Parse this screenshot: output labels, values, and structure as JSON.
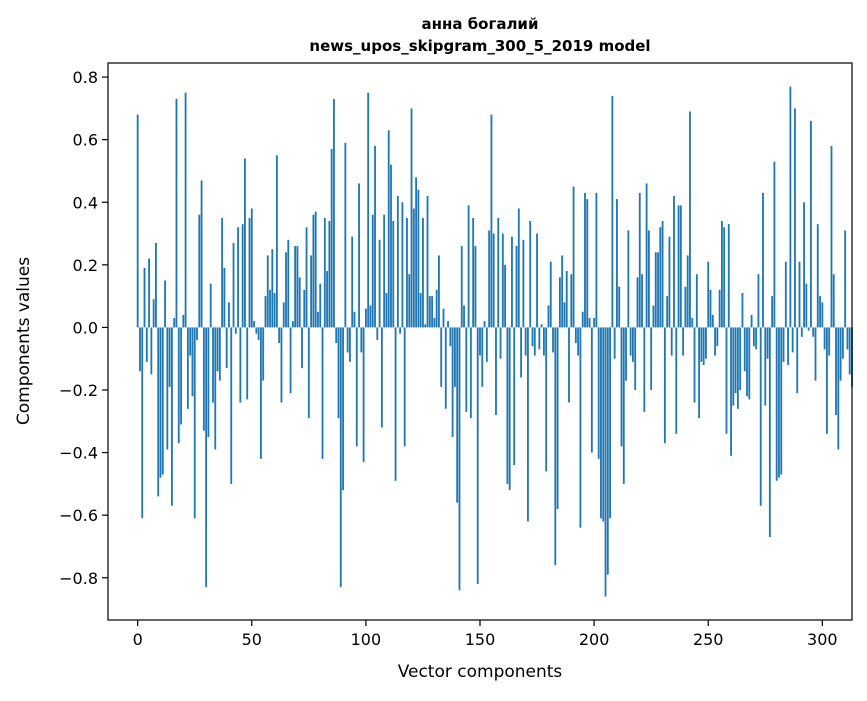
{
  "chart_data": {
    "type": "bar",
    "title": [
      "анна богалий",
      "news_upos_skipgram_300_5_2019 model"
    ],
    "xlabel": "Vector components",
    "ylabel": "Components values",
    "xlim": [
      -13,
      313
    ],
    "ylim": [
      -0.935,
      0.845
    ],
    "xticks": [
      0,
      50,
      100,
      150,
      200,
      250,
      300
    ],
    "yticks": [
      -0.8,
      -0.6,
      -0.4,
      -0.2,
      0.0,
      0.2,
      0.4,
      0.6,
      0.8
    ],
    "ytick_labels": [
      "−0.8",
      "−0.6",
      "−0.4",
      "−0.2",
      "0.0",
      "0.2",
      "0.4",
      "0.6",
      "0.8"
    ],
    "bar_color": "#1f77b4",
    "grid": false,
    "values": [
      0.68,
      -0.14,
      -0.61,
      0.19,
      -0.11,
      0.22,
      -0.15,
      0.09,
      0.27,
      -0.54,
      -0.48,
      -0.47,
      0.15,
      -0.39,
      -0.19,
      -0.57,
      0.03,
      0.73,
      -0.37,
      -0.31,
      0.04,
      0.75,
      -0.26,
      -0.09,
      -0.22,
      -0.61,
      -0.04,
      0.36,
      0.47,
      -0.33,
      -0.83,
      -0.35,
      0.14,
      -0.24,
      -0.39,
      -0.14,
      -0.17,
      0.35,
      0.19,
      -0.13,
      0.08,
      -0.5,
      0.27,
      -0.02,
      0.32,
      -0.24,
      0.33,
      0.54,
      -0.23,
      0.35,
      0.38,
      0.02,
      -0.02,
      -0.04,
      -0.42,
      -0.17,
      0.1,
      0.23,
      0.12,
      0.25,
      0.11,
      0.55,
      -0.05,
      -0.24,
      0.08,
      0.24,
      0.28,
      -0.21,
      0.02,
      0.26,
      0.26,
      0.16,
      -0.13,
      0.12,
      0.32,
      -0.29,
      0.23,
      0.36,
      0.37,
      0.05,
      0.14,
      -0.42,
      0.35,
      0.18,
      0.34,
      0.57,
      0.73,
      -0.05,
      -0.29,
      -0.83,
      -0.52,
      0.59,
      -0.08,
      -0.11,
      0.29,
      0.05,
      -0.38,
      0.46,
      -0.08,
      -0.43,
      0.06,
      0.75,
      0.07,
      0.36,
      0.58,
      -0.04,
      0.28,
      -0.32,
      0.36,
      0.11,
      0.63,
      0.52,
      0.34,
      -0.49,
      0.42,
      -0.02,
      0.4,
      -0.38,
      0.35,
      0.17,
      0.7,
      0.38,
      0.48,
      0.44,
      0.11,
      0.35,
      0.01,
      0.42,
      0.1,
      0.1,
      0.03,
      0.12,
      0.23,
      -0.19,
      0.06,
      -0.26,
      0.02,
      -0.06,
      -0.35,
      -0.19,
      -0.56,
      -0.84,
      0.26,
      0.07,
      -0.27,
      0.39,
      -0.29,
      0.35,
      0.26,
      -0.82,
      -0.09,
      -0.19,
      0.02,
      -0.11,
      0.31,
      0.68,
      0.3,
      -0.28,
      0.35,
      -0.1,
      0.3,
      0.2,
      -0.5,
      -0.52,
      0.29,
      -0.44,
      0.26,
      0.38,
      -0.16,
      0.28,
      -0.09,
      -0.62,
      0.34,
      -0.06,
      -0.09,
      0.3,
      -0.07,
      0.01,
      -0.09,
      -0.46,
      0.07,
      0.21,
      -0.08,
      -0.76,
      -0.58,
      0.16,
      0.23,
      0.08,
      0.18,
      -0.24,
      0.17,
      0.45,
      -0.05,
      -0.09,
      -0.64,
      0.05,
      0.43,
      0.41,
      0.03,
      -0.4,
      0.03,
      0.43,
      -0.42,
      -0.61,
      -0.62,
      -0.86,
      -0.79,
      -0.61,
      0.74,
      -0.1,
      0.41,
      0.13,
      -0.38,
      -0.5,
      -0.17,
      0.31,
      -0.09,
      -0.11,
      -0.2,
      0.16,
      0.43,
      0.17,
      -0.27,
      0.46,
      0.31,
      -0.2,
      0.07,
      0.24,
      0.24,
      0.32,
      0.34,
      -0.37,
      0.1,
      0.29,
      -0.09,
      0.42,
      -0.34,
      0.39,
      0.39,
      -0.09,
      0.13,
      0.23,
      0.69,
      0.03,
      -0.24,
      0.17,
      -0.29,
      -0.11,
      -0.12,
      -0.1,
      0.21,
      0.12,
      0.04,
      -0.09,
      -0.06,
      0.12,
      0.34,
      0.32,
      -0.34,
      0.33,
      -0.41,
      -0.25,
      -0.21,
      -0.26,
      -0.2,
      0.11,
      -0.14,
      -0.22,
      -0.23,
      0.04,
      -0.06,
      -0.07,
      0.17,
      -0.57,
      0.43,
      -0.25,
      -0.1,
      -0.67,
      0.1,
      0.53,
      -0.49,
      -0.48,
      -0.47,
      -0.11,
      0.21,
      -0.12,
      0.77,
      -0.08,
      0.7,
      -0.21,
      0.21,
      -0.03,
      0.4,
      0.14,
      -0.01,
      0.66,
      -0.03,
      -0.17,
      0.33,
      0.1,
      0.08,
      -0.07,
      -0.34,
      -0.09,
      0.58,
      0.17,
      -0.28,
      -0.39,
      -0.17,
      -0.1,
      0.31,
      -0.07,
      -0.15,
      -0.19
    ]
  }
}
